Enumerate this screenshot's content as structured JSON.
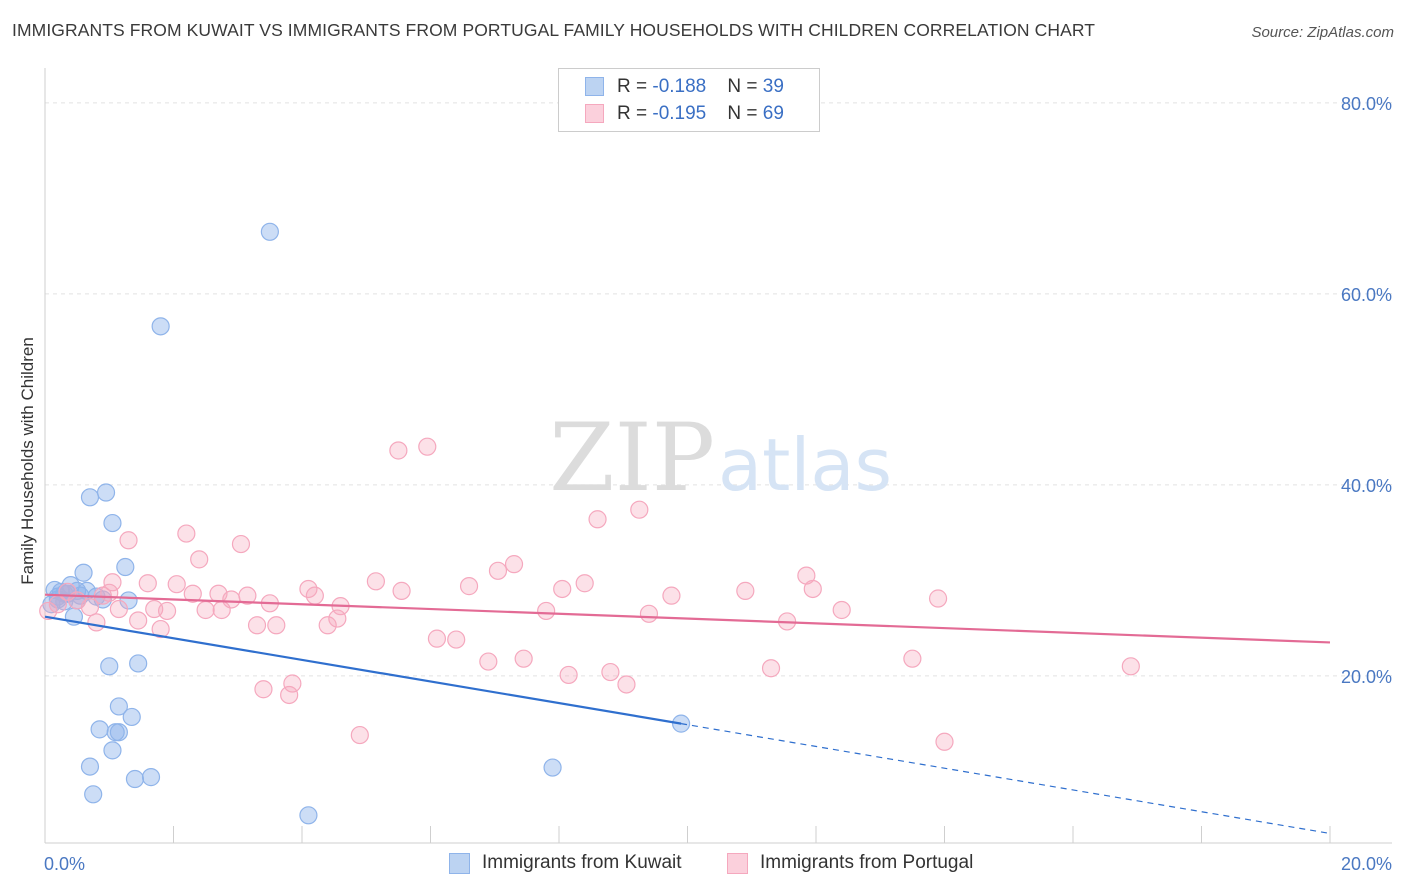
{
  "chart_data": {
    "type": "scatter",
    "title": "IMMIGRANTS FROM KUWAIT VS IMMIGRANTS FROM PORTUGAL FAMILY HOUSEHOLDS WITH CHILDREN CORRELATION CHART",
    "source": "Source: ZipAtlas.com",
    "ylabel": "Family Households with Children",
    "xlim": [
      0,
      20
    ],
    "ylim": [
      2.5,
      82.5
    ],
    "x_tick_labels": [
      {
        "value": 0,
        "label": "0.0%"
      },
      {
        "value": 20,
        "label": "20.0%"
      }
    ],
    "y_tick_labels": [
      {
        "value": 20,
        "label": "20.0%"
      },
      {
        "value": 40,
        "label": "40.0%"
      },
      {
        "value": 60,
        "label": "60.0%"
      },
      {
        "value": 80,
        "label": "80.0%"
      }
    ],
    "watermark": {
      "part1": "ZIP",
      "part2": "atlas"
    },
    "legend": [
      {
        "r_label": "R = ",
        "r_value": "-0.188",
        "n_label": "N = ",
        "n_value": "39"
      },
      {
        "r_label": "R = ",
        "r_value": "-0.195",
        "n_label": "N = ",
        "n_value": "69"
      }
    ],
    "series": [
      {
        "name": "Immigrants from Kuwait",
        "color": "#8fb4ea",
        "line_color": "#2f6fce",
        "trend": {
          "x0": 0,
          "y0": 26.2,
          "x1": 9.9,
          "y1": 15.0,
          "dash_to_x": 20,
          "dash_to_y": 3.5
        },
        "points": [
          [
            0.1,
            27.5
          ],
          [
            0.15,
            29.0
          ],
          [
            0.2,
            28.3
          ],
          [
            0.25,
            28.8
          ],
          [
            0.3,
            27.8
          ],
          [
            0.35,
            28.6
          ],
          [
            0.4,
            29.5
          ],
          [
            0.45,
            26.2
          ],
          [
            0.5,
            28.9
          ],
          [
            0.55,
            28.4
          ],
          [
            0.6,
            30.8
          ],
          [
            0.65,
            28.9
          ],
          [
            0.7,
            38.7
          ],
          [
            0.8,
            28.3
          ],
          [
            0.9,
            28.0
          ],
          [
            0.95,
            39.2
          ],
          [
            1.05,
            36.0
          ],
          [
            1.25,
            31.4
          ],
          [
            1.3,
            27.9
          ],
          [
            1.0,
            21.0
          ],
          [
            1.45,
            21.3
          ],
          [
            1.15,
            16.8
          ],
          [
            1.35,
            15.7
          ],
          [
            0.85,
            14.4
          ],
          [
            1.1,
            14.1
          ],
          [
            1.15,
            14.1
          ],
          [
            1.05,
            12.2
          ],
          [
            0.7,
            10.5
          ],
          [
            0.75,
            7.6
          ],
          [
            1.4,
            9.2
          ],
          [
            1.65,
            9.4
          ],
          [
            1.8,
            56.6
          ],
          [
            3.5,
            66.5
          ],
          [
            4.1,
            5.4
          ],
          [
            7.9,
            10.4
          ],
          [
            9.9,
            15.0
          ],
          [
            0.2,
            28.0
          ],
          [
            0.3,
            28.6
          ],
          [
            0.5,
            27.9
          ]
        ]
      },
      {
        "name": "Immigrants from Portugal",
        "color": "#f5a8be",
        "line_color": "#e36b95",
        "trend": {
          "x0": 0,
          "y0": 28.5,
          "x1": 20,
          "y1": 23.5
        },
        "points": [
          [
            0.05,
            26.8
          ],
          [
            0.2,
            27.5
          ],
          [
            0.35,
            28.8
          ],
          [
            0.5,
            27.9
          ],
          [
            0.7,
            27.2
          ],
          [
            0.8,
            25.6
          ],
          [
            0.9,
            28.4
          ],
          [
            1.0,
            28.7
          ],
          [
            1.05,
            29.8
          ],
          [
            1.15,
            27.0
          ],
          [
            1.3,
            34.2
          ],
          [
            1.45,
            25.8
          ],
          [
            1.6,
            29.7
          ],
          [
            1.7,
            27.0
          ],
          [
            1.8,
            24.9
          ],
          [
            1.9,
            26.8
          ],
          [
            2.05,
            29.6
          ],
          [
            2.2,
            34.9
          ],
          [
            2.3,
            28.6
          ],
          [
            2.4,
            32.2
          ],
          [
            2.5,
            26.9
          ],
          [
            2.7,
            28.6
          ],
          [
            2.75,
            26.9
          ],
          [
            2.9,
            28.0
          ],
          [
            3.05,
            33.8
          ],
          [
            3.15,
            28.4
          ],
          [
            3.3,
            25.3
          ],
          [
            3.4,
            18.6
          ],
          [
            3.5,
            27.6
          ],
          [
            3.6,
            25.3
          ],
          [
            3.8,
            18.0
          ],
          [
            3.85,
            19.2
          ],
          [
            4.1,
            29.1
          ],
          [
            4.2,
            28.4
          ],
          [
            4.4,
            25.3
          ],
          [
            4.55,
            26.0
          ],
          [
            4.6,
            27.3
          ],
          [
            4.9,
            13.8
          ],
          [
            5.15,
            29.9
          ],
          [
            5.5,
            43.6
          ],
          [
            5.55,
            28.9
          ],
          [
            5.95,
            44.0
          ],
          [
            6.1,
            23.9
          ],
          [
            6.4,
            23.8
          ],
          [
            6.6,
            29.4
          ],
          [
            6.9,
            21.5
          ],
          [
            7.05,
            31.0
          ],
          [
            7.3,
            31.7
          ],
          [
            7.45,
            21.8
          ],
          [
            7.8,
            26.8
          ],
          [
            8.05,
            29.1
          ],
          [
            8.15,
            20.1
          ],
          [
            8.4,
            29.7
          ],
          [
            8.6,
            36.4
          ],
          [
            8.8,
            20.4
          ],
          [
            9.05,
            19.1
          ],
          [
            9.25,
            37.4
          ],
          [
            9.4,
            26.5
          ],
          [
            9.75,
            28.4
          ],
          [
            10.9,
            28.9
          ],
          [
            11.3,
            20.8
          ],
          [
            11.55,
            25.7
          ],
          [
            11.85,
            30.5
          ],
          [
            11.95,
            29.1
          ],
          [
            12.4,
            26.9
          ],
          [
            13.5,
            21.8
          ],
          [
            13.9,
            28.1
          ],
          [
            14.0,
            13.1
          ],
          [
            16.9,
            21.0
          ]
        ]
      }
    ]
  }
}
